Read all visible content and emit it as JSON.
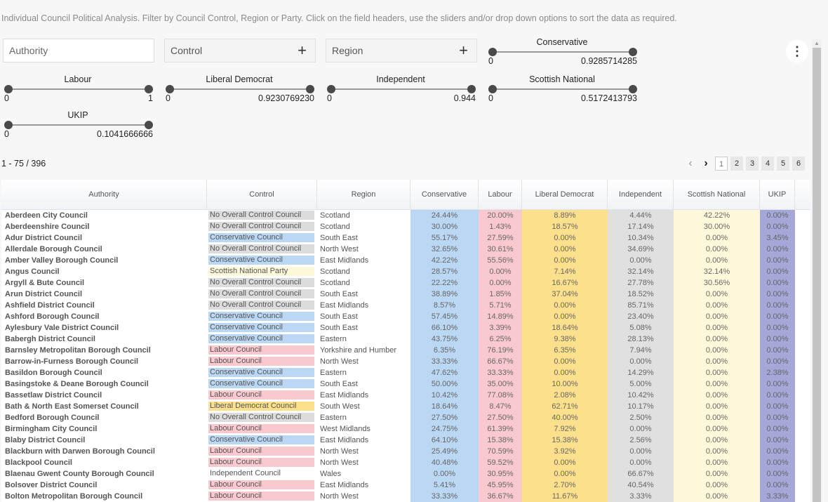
{
  "description": "Individual Council Political Analysis. Filter by Council Control, Region or Party. Click on the field headers, use the sliders and/or drop down options to sort the data as required.",
  "filters": {
    "authority_placeholder": "Authority",
    "control_label": "Control",
    "region_label": "Region"
  },
  "sliders": [
    {
      "label": "Conservative",
      "min": "0",
      "max": "0.9285714285"
    },
    {
      "label": "Labour",
      "min": "0",
      "max": "1"
    },
    {
      "label": "Liberal Democrat",
      "min": "0",
      "max": "0.9230769230"
    },
    {
      "label": "Independent",
      "min": "0",
      "max": "0.944"
    },
    {
      "label": "Scottish National",
      "min": "0",
      "max": "0.5172413793"
    },
    {
      "label": "UKIP",
      "min": "0",
      "max": "0.1041666666"
    }
  ],
  "menu_icon": "more-vertical-icon",
  "count_text": "1 - 75 / 396",
  "pager": {
    "pages": [
      "1",
      "2",
      "3",
      "4",
      "5",
      "6"
    ],
    "active": 0
  },
  "columns": [
    "Authority",
    "Control",
    "Region",
    "Conservative",
    "Labour",
    "Liberal Democrat",
    "Independent",
    "Scottish National",
    "UKIP"
  ],
  "control_colors": {
    "No Overall Control Council": "#dcdcdc",
    "Conservative Council": "#bad7f3",
    "Labour Council": "#f9c9cf",
    "Scottish National Party": "#fff9dc",
    "Liberal Democrat Council": "#fde08c",
    "Independent Council": "transparent"
  },
  "party_colors": {
    "Conservative": "#bad7f3",
    "Labour": "#f9c9cf",
    "Liberal Democrat": "#fde08c",
    "Independent": "#e0e0e0",
    "Scottish National": "#fff9dc",
    "UKIP": "#a5a7d8"
  },
  "rows": [
    [
      "Aberdeen City Council",
      "No Overall Control Council",
      "Scotland",
      "24.44%",
      "20.00%",
      "8.89%",
      "4.44%",
      "42.22%",
      "0.00%"
    ],
    [
      "Aberdeenshire Council",
      "No Overall Control Council",
      "Scotland",
      "30.00%",
      "1.43%",
      "18.57%",
      "17.14%",
      "30.00%",
      "0.00%"
    ],
    [
      "Adur District Council",
      "Conservative Council",
      "South East",
      "55.17%",
      "27.59%",
      "0.00%",
      "10.34%",
      "0.00%",
      "3.45%"
    ],
    [
      "Allerdale Borough Council",
      "No Overall Control Council",
      "North West",
      "32.65%",
      "30.61%",
      "0.00%",
      "34.69%",
      "0.00%",
      "0.00%"
    ],
    [
      "Amber Valley Borough Council",
      "Conservative Council",
      "East Midlands",
      "42.22%",
      "55.56%",
      "0.00%",
      "0.00%",
      "0.00%",
      "0.00%"
    ],
    [
      "Angus Council",
      "Scottish National Party",
      "Scotland",
      "28.57%",
      "0.00%",
      "7.14%",
      "32.14%",
      "32.14%",
      "0.00%"
    ],
    [
      "Argyll & Bute Council",
      "No Overall Control Council",
      "Scotland",
      "22.22%",
      "0.00%",
      "16.67%",
      "27.78%",
      "30.56%",
      "0.00%"
    ],
    [
      "Arun District Council",
      "No Overall Control Council",
      "South East",
      "38.89%",
      "1.85%",
      "37.04%",
      "18.52%",
      "0.00%",
      "0.00%"
    ],
    [
      "Ashfield District Council",
      "No Overall Control Council",
      "East Midlands",
      "8.57%",
      "5.71%",
      "0.00%",
      "85.71%",
      "0.00%",
      "0.00%"
    ],
    [
      "Ashford Borough Council",
      "Conservative Council",
      "South East",
      "57.45%",
      "14.89%",
      "0.00%",
      "23.40%",
      "0.00%",
      "0.00%"
    ],
    [
      "Aylesbury Vale District Council",
      "Conservative Council",
      "South East",
      "66.10%",
      "3.39%",
      "18.64%",
      "5.08%",
      "0.00%",
      "0.00%"
    ],
    [
      "Babergh District Council",
      "Conservative Council",
      "Eastern",
      "43.75%",
      "6.25%",
      "9.38%",
      "28.13%",
      "0.00%",
      "0.00%"
    ],
    [
      "Barnsley Metropolitan Borough Council",
      "Labour Council",
      "Yorkshire and Humber",
      "6.35%",
      "76.19%",
      "6.35%",
      "7.94%",
      "0.00%",
      "0.00%"
    ],
    [
      "Barrow-in-Furness Borough Council",
      "Labour Council",
      "North West",
      "33.33%",
      "66.67%",
      "0.00%",
      "0.00%",
      "0.00%",
      "0.00%"
    ],
    [
      "Basildon Borough Council",
      "Conservative Council",
      "Eastern",
      "47.62%",
      "33.33%",
      "0.00%",
      "14.29%",
      "0.00%",
      "2.38%"
    ],
    [
      "Basingstoke & Deane Borough Council",
      "Conservative Council",
      "South East",
      "50.00%",
      "35.00%",
      "10.00%",
      "5.00%",
      "0.00%",
      "0.00%"
    ],
    [
      "Bassetlaw District Council",
      "Labour Council",
      "East Midlands",
      "10.42%",
      "77.08%",
      "2.08%",
      "10.42%",
      "0.00%",
      "0.00%"
    ],
    [
      "Bath & North East Somerset Council",
      "Liberal Democrat Council",
      "South West",
      "18.64%",
      "8.47%",
      "62.71%",
      "10.17%",
      "0.00%",
      "0.00%"
    ],
    [
      "Bedford Borough Council",
      "No Overall Control Council",
      "Eastern",
      "27.50%",
      "27.50%",
      "40.00%",
      "2.50%",
      "0.00%",
      "0.00%"
    ],
    [
      "Birmingham City Council",
      "Labour Council",
      "West Midlands",
      "24.75%",
      "61.39%",
      "7.92%",
      "0.00%",
      "0.00%",
      "0.00%"
    ],
    [
      "Blaby District Council",
      "Conservative Council",
      "East Midlands",
      "64.10%",
      "15.38%",
      "15.38%",
      "2.56%",
      "0.00%",
      "0.00%"
    ],
    [
      "Blackburn with Darwen Borough Council",
      "Labour Council",
      "North West",
      "25.49%",
      "70.59%",
      "3.92%",
      "0.00%",
      "0.00%",
      "0.00%"
    ],
    [
      "Blackpool Council",
      "Labour Council",
      "North West",
      "40.48%",
      "59.52%",
      "0.00%",
      "0.00%",
      "0.00%",
      "0.00%"
    ],
    [
      "Blaenau Gwent County Borough Council",
      "Independent Council",
      "Wales",
      "0.00%",
      "30.95%",
      "0.00%",
      "66.67%",
      "0.00%",
      "0.00%"
    ],
    [
      "Bolsover District Council",
      "Labour Council",
      "East Midlands",
      "5.41%",
      "45.95%",
      "2.70%",
      "40.54%",
      "0.00%",
      "0.00%"
    ],
    [
      "Bolton Metropolitan Borough Council",
      "Labour Council",
      "North West",
      "33.33%",
      "36.67%",
      "11.67%",
      "3.33%",
      "0.00%",
      "3.33%"
    ]
  ]
}
